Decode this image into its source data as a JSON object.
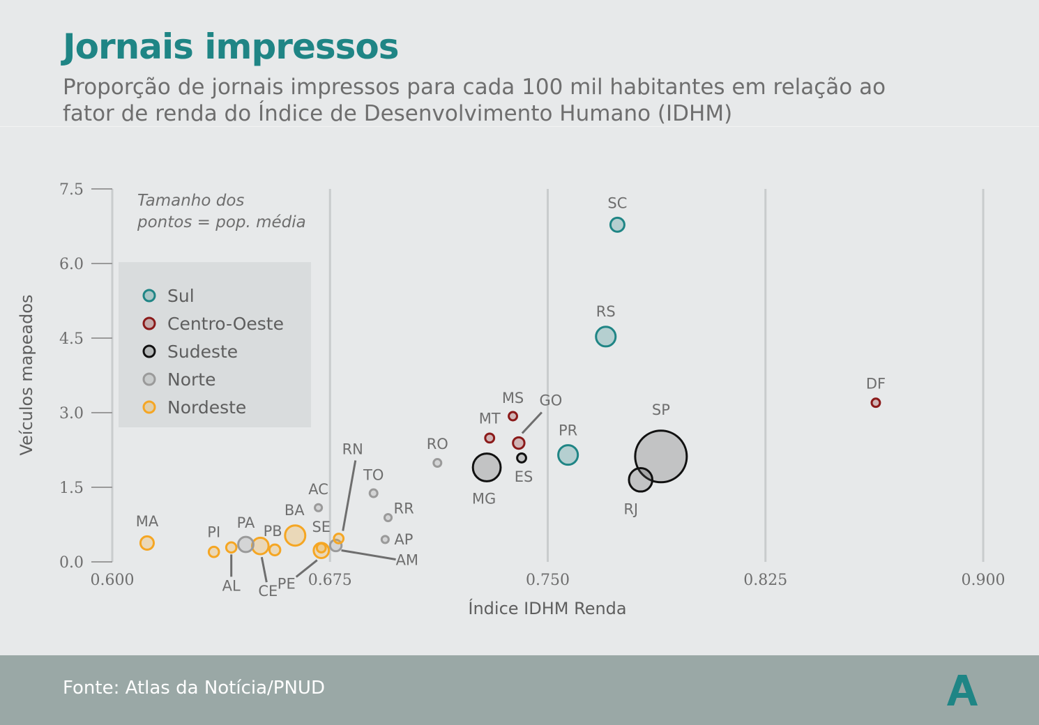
{
  "header": {
    "title": "Jornais impressos",
    "subtitle": "Proporção de jornais impressos para cada 100 mil habitantes em relação ao fator de renda do Índice de Desenvolvimento Humano (IDHM)"
  },
  "footer": {
    "source": "Fonte: Atlas da Notícia/PNUD",
    "logo_letter": "A"
  },
  "colors": {
    "Sul": "#1f8585",
    "Centro-Oeste": "#8b1a1a",
    "Sudeste": "#111111",
    "Norte": "#9a9a9a",
    "Nordeste": "#f5a623",
    "title": "#1f8585",
    "footer_bg": "#9aa8a6"
  },
  "chart_data": {
    "type": "scatter",
    "title": "Jornais impressos",
    "xlabel": "Índice IDHM Renda",
    "ylabel": "Veículos mapeados",
    "xlim": [
      0.6,
      0.9
    ],
    "ylim": [
      0,
      7.5
    ],
    "x_ticks": [
      "0.600",
      "0.675",
      "0.750",
      "0.825",
      "0.900"
    ],
    "y_ticks": [
      "0.0",
      "1.5",
      "3.0",
      "4.5",
      "6.0",
      "7.5"
    ],
    "grid": "vertical",
    "size_note_line1": "Tamanho dos",
    "size_note_line2": "pontos = pop. média",
    "legend_placement": "top-left",
    "legend": [
      "Sul",
      "Centro-Oeste",
      "Sudeste",
      "Norte",
      "Nordeste"
    ],
    "points": [
      {
        "label": "SC",
        "region": "Sul",
        "x": 0.774,
        "y": 6.78,
        "size": 1.0
      },
      {
        "label": "RS",
        "region": "Sul",
        "x": 0.77,
        "y": 4.53,
        "size": 1.45
      },
      {
        "label": "PR",
        "region": "Sul",
        "x": 0.757,
        "y": 2.15,
        "size": 1.45
      },
      {
        "label": "DF",
        "region": "Centro-Oeste",
        "x": 0.863,
        "y": 3.2,
        "size": 0.55
      },
      {
        "label": "MS",
        "region": "Centro-Oeste",
        "x": 0.738,
        "y": 2.93,
        "size": 0.55
      },
      {
        "label": "MT",
        "region": "Centro-Oeste",
        "x": 0.73,
        "y": 2.49,
        "size": 0.6
      },
      {
        "label": "GO",
        "region": "Centro-Oeste",
        "x": 0.74,
        "y": 2.39,
        "size": 0.8
      },
      {
        "label": "SP",
        "region": "Sudeste",
        "x": 0.789,
        "y": 2.12,
        "size": 4.0
      },
      {
        "label": "RJ",
        "region": "Sudeste",
        "x": 0.782,
        "y": 1.65,
        "size": 1.75
      },
      {
        "label": "MG",
        "region": "Sudeste",
        "x": 0.729,
        "y": 1.9,
        "size": 2.1
      },
      {
        "label": "ES",
        "region": "Sudeste",
        "x": 0.741,
        "y": 2.09,
        "size": 0.6
      },
      {
        "label": "RO",
        "region": "Norte",
        "x": 0.712,
        "y": 1.99,
        "size": 0.5
      },
      {
        "label": "TO",
        "region": "Norte",
        "x": 0.69,
        "y": 1.38,
        "size": 0.5
      },
      {
        "label": "AC",
        "region": "Norte",
        "x": 0.671,
        "y": 1.09,
        "size": 0.45
      },
      {
        "label": "RR",
        "region": "Norte",
        "x": 0.695,
        "y": 0.89,
        "size": 0.45
      },
      {
        "label": "AP",
        "region": "Norte",
        "x": 0.694,
        "y": 0.45,
        "size": 0.45
      },
      {
        "label": "PA",
        "region": "Norte",
        "x": 0.646,
        "y": 0.35,
        "size": 1.1
      },
      {
        "label": "AM",
        "region": "Norte",
        "x": 0.677,
        "y": 0.33,
        "size": 0.8
      },
      {
        "label": "MA",
        "region": "Nordeste",
        "x": 0.612,
        "y": 0.38,
        "size": 0.95
      },
      {
        "label": "PI",
        "region": "Nordeste",
        "x": 0.635,
        "y": 0.2,
        "size": 0.7
      },
      {
        "label": "AL",
        "region": "Nordeste",
        "x": 0.641,
        "y": 0.29,
        "size": 0.7
      },
      {
        "label": "CE",
        "region": "Nordeste",
        "x": 0.651,
        "y": 0.32,
        "size": 1.2
      },
      {
        "label": "PB",
        "region": "Nordeste",
        "x": 0.656,
        "y": 0.24,
        "size": 0.75
      },
      {
        "label": "BA",
        "region": "Nordeste",
        "x": 0.663,
        "y": 0.53,
        "size": 1.5
      },
      {
        "label": "SE",
        "region": "Nordeste",
        "x": 0.672,
        "y": 0.28,
        "size": 0.6
      },
      {
        "label": "PE",
        "region": "Nordeste",
        "x": 0.672,
        "y": 0.23,
        "size": 1.1
      },
      {
        "label": "RN",
        "region": "Nordeste",
        "x": 0.678,
        "y": 0.47,
        "size": 0.65
      }
    ]
  }
}
